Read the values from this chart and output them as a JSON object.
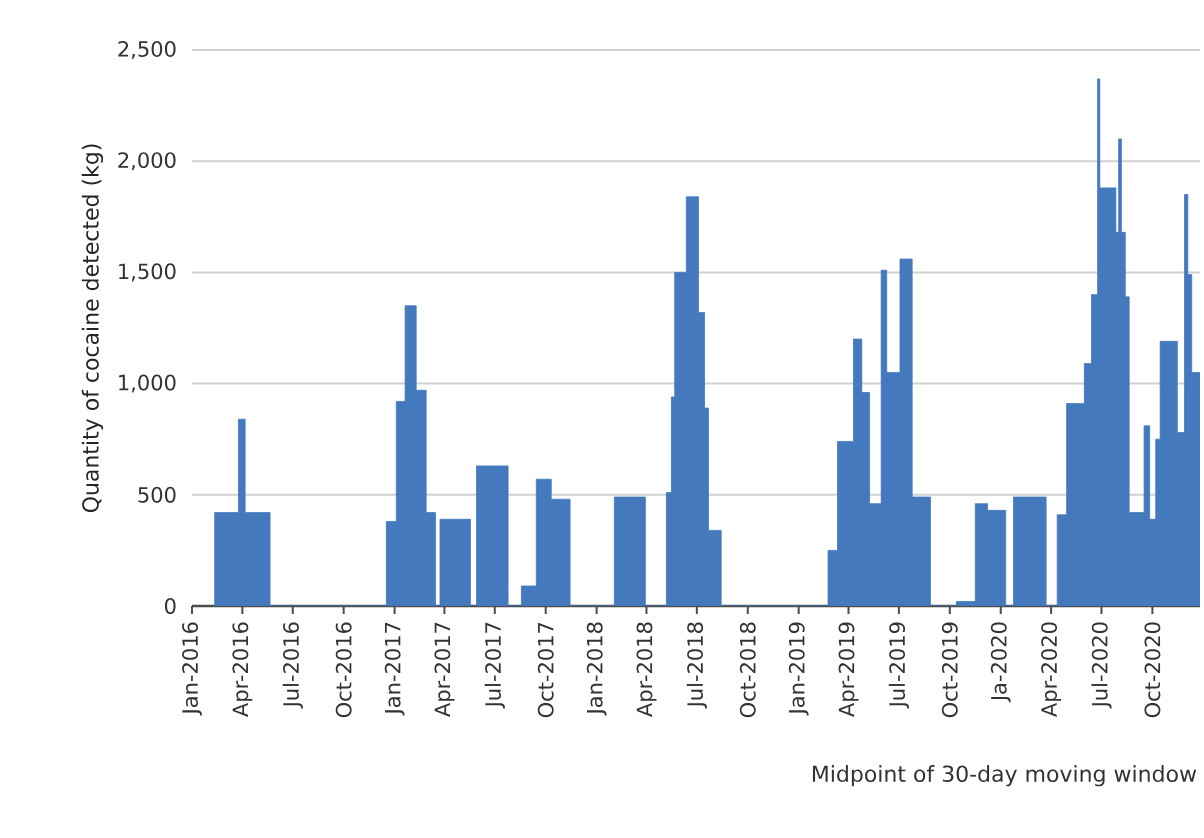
{
  "chart_data": {
    "type": "area",
    "xlabel": "Midpoint of 30-day moving window",
    "ylabel": "Quantity of cocaine detected (kg)",
    "color": "#4479be",
    "grid": "y",
    "xlim": [
      "2016-01-01",
      "2020-12-26"
    ],
    "ylim": [
      0,
      2500
    ],
    "xticks": [
      {
        "value": "2016-01-01",
        "label": "Jan-2016"
      },
      {
        "value": "2016-04-01",
        "label": "Apr-2016"
      },
      {
        "value": "2016-07-01",
        "label": "Jul-2016"
      },
      {
        "value": "2016-10-01",
        "label": "Oct-2016"
      },
      {
        "value": "2017-01-01",
        "label": "Jan-2017"
      },
      {
        "value": "2017-04-01",
        "label": "Apr-2017"
      },
      {
        "value": "2017-07-01",
        "label": "Jul-2017"
      },
      {
        "value": "2017-10-01",
        "label": "Oct-2017"
      },
      {
        "value": "2018-01-01",
        "label": "Jan-2018"
      },
      {
        "value": "2018-04-01",
        "label": "Apr-2018"
      },
      {
        "value": "2018-07-01",
        "label": "Jul-2018"
      },
      {
        "value": "2018-10-01",
        "label": "Oct-2018"
      },
      {
        "value": "2019-01-01",
        "label": "Jan-2019"
      },
      {
        "value": "2019-04-01",
        "label": "Apr-2019"
      },
      {
        "value": "2019-07-01",
        "label": "Jul-2019"
      },
      {
        "value": "2019-10-01",
        "label": "Oct-2019"
      },
      {
        "value": "2020-01-01",
        "label": "Ja-2020"
      },
      {
        "value": "2020-04-01",
        "label": "Apr-2020"
      },
      {
        "value": "2020-07-01",
        "label": "Jul-2020"
      },
      {
        "value": "2020-10-01",
        "label": "Oct-2020"
      }
    ],
    "yticks": [
      0,
      500,
      {
        "value": 1000,
        "label": "1,000"
      },
      {
        "value": 1500,
        "label": "1,500"
      },
      {
        "value": 2000,
        "label": "2,000"
      },
      {
        "value": 2500,
        "label": "2,500"
      }
    ],
    "x": [
      "2016-02-11",
      "2016-02-11",
      "2016-03-25",
      "2016-03-25",
      "2016-04-06",
      "2016-04-06",
      "2016-05-21",
      "2016-05-21",
      "2016-12-17",
      "2016-12-17",
      "2017-01-04",
      "2017-01-04",
      "2017-01-20",
      "2017-01-20",
      "2017-02-09",
      "2017-02-09",
      "2017-02-27",
      "2017-02-27",
      "2017-03-16",
      "2017-03-16",
      "2017-03-24",
      "2017-03-24",
      "2017-05-18",
      "2017-05-18",
      "2017-05-29",
      "2017-05-29",
      "2017-07-25",
      "2017-07-25",
      "2017-08-18",
      "2017-08-18",
      "2017-09-14",
      "2017-09-14",
      "2017-10-11",
      "2017-10-11",
      "2017-11-14",
      "2017-11-14",
      "2018-02-02",
      "2018-02-02",
      "2018-03-30",
      "2018-03-30",
      "2018-05-07",
      "2018-05-07",
      "2018-05-16",
      "2018-05-16",
      "2018-05-22",
      "2018-05-22",
      "2018-06-12",
      "2018-06-12",
      "2018-07-04",
      "2018-07-04",
      "2018-07-15",
      "2018-07-15",
      "2018-07-22",
      "2018-07-22",
      "2018-08-14",
      "2018-08-14",
      "2019-02-23",
      "2019-02-23",
      "2019-03-12",
      "2019-03-12",
      "2019-04-10",
      "2019-04-10",
      "2019-04-25",
      "2019-04-25",
      "2019-05-09",
      "2019-05-09",
      "2019-05-30",
      "2019-05-30",
      "2019-06-09",
      "2019-06-09",
      "2019-07-03",
      "2019-07-03",
      "2019-07-25",
      "2019-07-25",
      "2019-08-27",
      "2019-08-27",
      "2019-10-13",
      "2019-10-13",
      "2019-11-16",
      "2019-11-16",
      "2019-12-08",
      "2019-12-08",
      "2020-01-10",
      "2020-01-10",
      "2020-01-24",
      "2020-01-24",
      "2020-03-23",
      "2020-03-23",
      "2020-04-12",
      "2020-04-12",
      "2020-04-29",
      "2020-04-29",
      "2020-05-31",
      "2020-05-31",
      "2020-06-13",
      "2020-06-13",
      "2020-06-24",
      "2020-06-24",
      "2020-06-28",
      "2020-06-28",
      "2020-07-27",
      "2020-07-27",
      "2020-08-01",
      "2020-08-01",
      "2020-08-06",
      "2020-08-06",
      "2020-08-13",
      "2020-08-13",
      "2020-08-20",
      "2020-08-20",
      "2020-09-16",
      "2020-09-16",
      "2020-09-26",
      "2020-09-26",
      "2020-10-07",
      "2020-10-07",
      "2020-10-15",
      "2020-10-15",
      "2020-11-15",
      "2020-11-15",
      "2020-11-28",
      "2020-11-28",
      "2020-12-04",
      "2020-12-04",
      "2020-12-11",
      "2020-12-11",
      "2020-12-26"
    ],
    "values": [
      0,
      420,
      420,
      840,
      840,
      420,
      420,
      0,
      0,
      380,
      380,
      920,
      920,
      1350,
      1350,
      970,
      970,
      420,
      420,
      0,
      0,
      390,
      390,
      0,
      0,
      630,
      630,
      0,
      0,
      90,
      90,
      570,
      570,
      480,
      480,
      0,
      0,
      490,
      490,
      0,
      0,
      510,
      510,
      940,
      940,
      1500,
      1500,
      1840,
      1840,
      1320,
      1320,
      890,
      890,
      340,
      340,
      0,
      0,
      250,
      250,
      740,
      740,
      1200,
      1200,
      960,
      960,
      460,
      460,
      1510,
      1510,
      1050,
      1050,
      1560,
      1560,
      490,
      490,
      0,
      0,
      20,
      20,
      460,
      460,
      430,
      430,
      0,
      0,
      490,
      490,
      0,
      0,
      410,
      410,
      910,
      910,
      1090,
      1090,
      1400,
      1400,
      2370,
      2370,
      1880,
      1880,
      1680,
      1680,
      2100,
      2100,
      1680,
      1680,
      1390,
      1390,
      420,
      420,
      810,
      810,
      390,
      390,
      750,
      750,
      1190,
      1190,
      780,
      780,
      1850,
      1850,
      1490,
      1490,
      1050,
      1050
    ]
  }
}
